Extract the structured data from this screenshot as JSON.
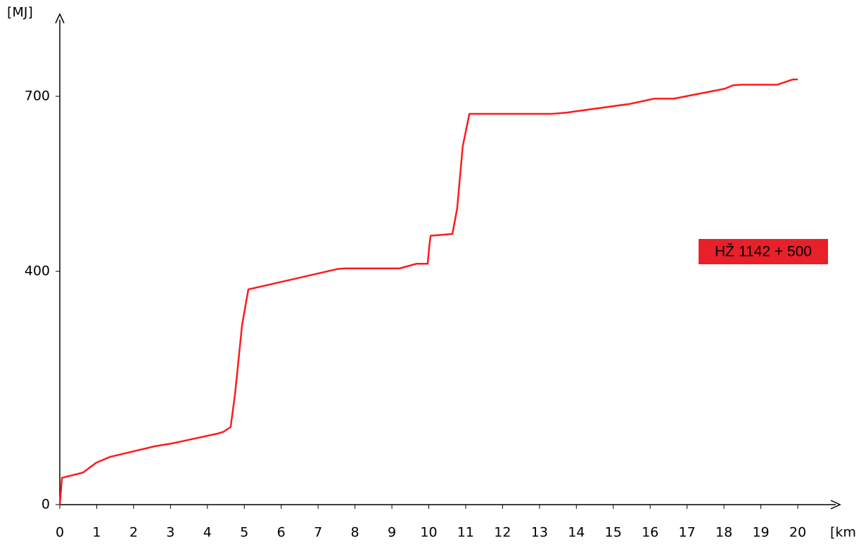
{
  "chart_data": {
    "type": "line",
    "y_label": "[MJ]",
    "x_label": "[km",
    "annotation": "HŽ 1142 + 500",
    "xlim": [
      0,
      21
    ],
    "ylim": [
      0,
      835
    ],
    "xticks": [
      0,
      1,
      2,
      3,
      4,
      5,
      6,
      7,
      8,
      9,
      10,
      11,
      12,
      13,
      14,
      15,
      16,
      17,
      18,
      19,
      20
    ],
    "yticks": [
      0,
      400,
      700
    ],
    "series": [
      {
        "color": "#ff1a1a",
        "x": [
          0,
          0.06,
          0.63,
          0.99,
          1.37,
          2.57,
          3.05,
          4.29,
          4.44,
          4.63,
          4.75,
          4.94,
          5.11,
          7.53,
          7.72,
          9.21,
          9.67,
          9.97,
          10.01,
          10.05,
          10.64,
          10.77,
          10.92,
          11.1,
          13.35,
          13.73,
          15.45,
          16.11,
          16.64,
          18.02,
          18.25,
          18.49,
          19.45,
          19.87,
          20
        ],
        "values": [
          0,
          46,
          55,
          72,
          82,
          100,
          105,
          122,
          125,
          133,
          190,
          308,
          369,
          404,
          405,
          405,
          413,
          413,
          441,
          461,
          464,
          508,
          614,
          670,
          670,
          672,
          687,
          696,
          696,
          713,
          719,
          720,
          720,
          729,
          729
        ]
      }
    ]
  }
}
